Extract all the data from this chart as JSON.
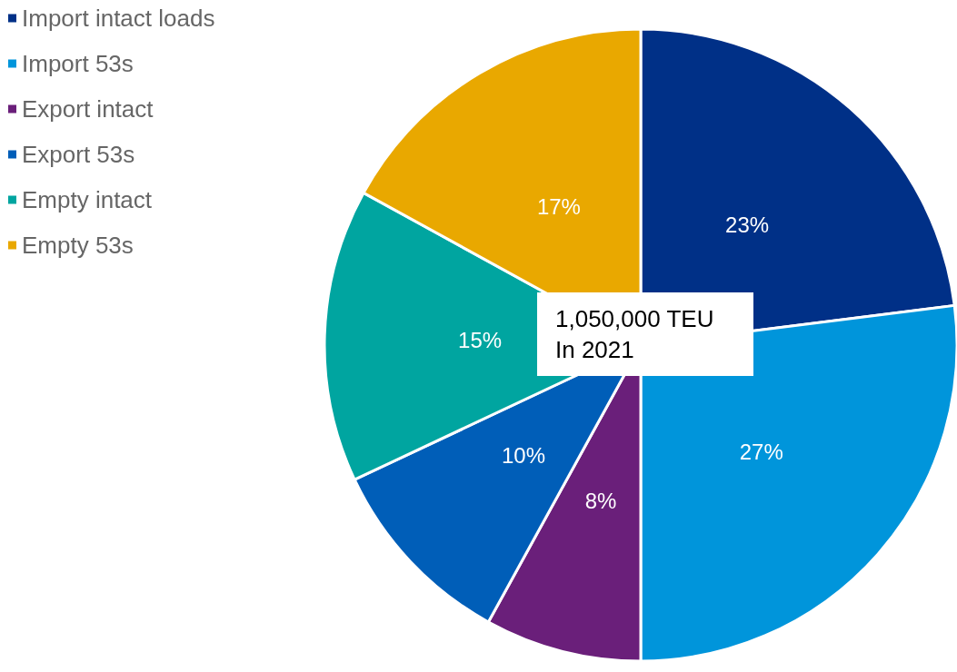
{
  "chart_data": {
    "type": "pie",
    "categories": [
      "Import intact loads",
      "Import 53s",
      "Export intact",
      "Export 53s",
      "Empty intact",
      "Empty 53s"
    ],
    "values": [
      23,
      27,
      8,
      10,
      15,
      17
    ],
    "colors": [
      "#003087",
      "#0095db",
      "#6a1f7a",
      "#005eb8",
      "#00a5a0",
      "#e9a800"
    ],
    "value_labels": [
      "23%",
      "27%",
      "8%",
      "10%",
      "15%",
      "17%"
    ],
    "legend": "top left",
    "annotations": [
      "1,050,000 TEU\nIn 2021"
    ]
  }
}
